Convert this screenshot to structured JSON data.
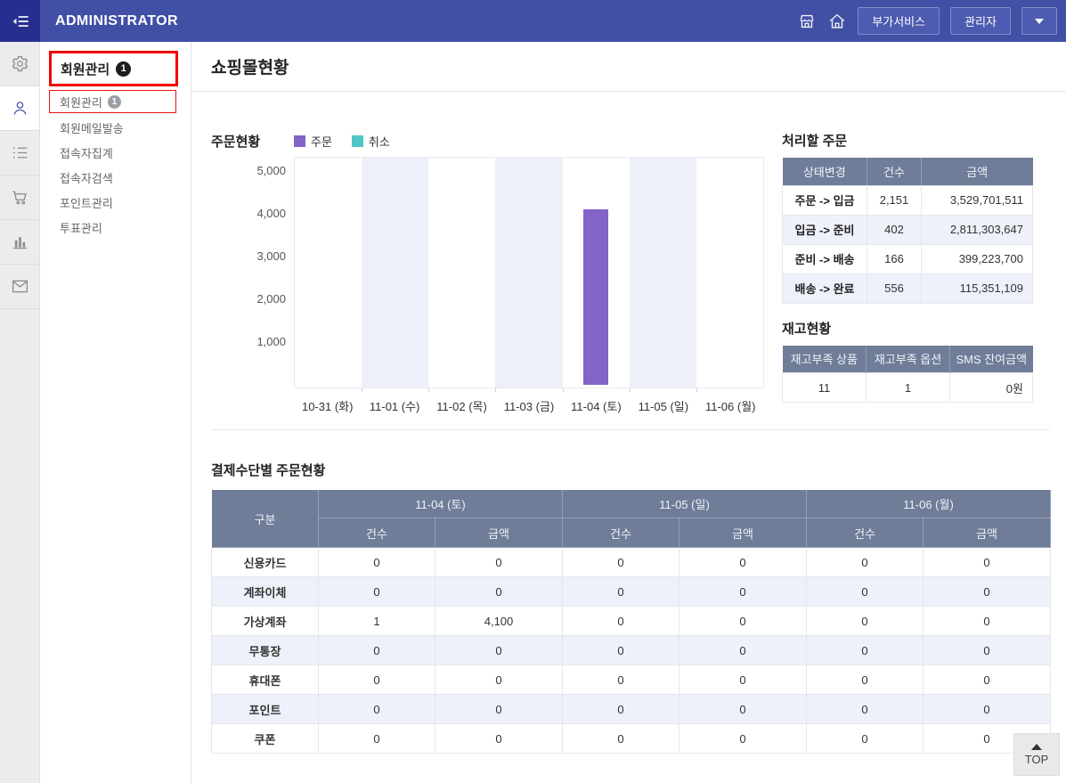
{
  "topbar": {
    "brand": "ADMINISTRATOR",
    "services_button": "부가서비스",
    "admin_button": "관리자"
  },
  "sidebar": {
    "rail_icons": [
      "settings-icon",
      "user-icon",
      "list-icon",
      "cart-icon",
      "bar-chart-icon",
      "mail-icon"
    ],
    "active_rail_icon": "user-icon",
    "menu": {
      "header": {
        "label": "회원관리",
        "badge": "1"
      },
      "items": [
        {
          "label": "회원관리",
          "badge": "1",
          "boxed_red": true
        },
        {
          "label": "회원메일발송"
        },
        {
          "label": "접속자집계"
        },
        {
          "label": "접속자검색"
        },
        {
          "label": "포인트관리"
        },
        {
          "label": "투표관리"
        }
      ]
    }
  },
  "page": {
    "title": "쇼핑몰현황"
  },
  "chart_data": {
    "type": "bar",
    "title": "주문현황",
    "categories": [
      "10-31 (화)",
      "11-01 (수)",
      "11-02 (목)",
      "11-03 (금)",
      "11-04 (토)",
      "11-05 (일)",
      "11-06 (월)"
    ],
    "series": [
      {
        "name": "주문",
        "color": "#8464c8",
        "values": [
          0,
          0,
          0,
          0,
          4100,
          0,
          0
        ]
      },
      {
        "name": "취소",
        "color": "#4fc5c8",
        "values": [
          0,
          0,
          0,
          0,
          0,
          0,
          0
        ]
      }
    ],
    "xlabel": "",
    "ylabel": "",
    "ylim": [
      0,
      5400
    ],
    "yticks": [
      1000,
      2000,
      3000,
      4000,
      5000
    ],
    "ytick_labels": [
      "1,000",
      "2,000",
      "3,000",
      "4,000",
      "5,000"
    ],
    "grid": false,
    "legend_position": "top",
    "band_color": "#edf0f9"
  },
  "pending_orders": {
    "title": "처리할 주문",
    "columns": [
      "상태변경",
      "건수",
      "금액"
    ],
    "rows": [
      {
        "status": "주문 -> 입금",
        "count": "2,151",
        "amount": "3,529,701,511"
      },
      {
        "status": "입금 -> 준비",
        "count": "402",
        "amount": "2,811,303,647"
      },
      {
        "status": "준비 -> 배송",
        "count": "166",
        "amount": "399,223,700"
      },
      {
        "status": "배송 -> 완료",
        "count": "556",
        "amount": "115,351,109"
      }
    ]
  },
  "inventory": {
    "title": "재고현황",
    "columns": [
      "재고부족 상품",
      "재고부족 옵션",
      "SMS 잔여금액"
    ],
    "values": [
      "11",
      "1",
      "0원"
    ]
  },
  "payment_table": {
    "title": "결제수단별 주문현황",
    "corner_label": "구분",
    "date_groups": [
      "11-04 (토)",
      "11-05 (일)",
      "11-06 (월)"
    ],
    "sub_columns": [
      "건수",
      "금액"
    ],
    "rows": [
      {
        "label": "신용카드",
        "values": [
          "0",
          "0",
          "0",
          "0",
          "0",
          "0"
        ]
      },
      {
        "label": "계좌이체",
        "values": [
          "0",
          "0",
          "0",
          "0",
          "0",
          "0"
        ]
      },
      {
        "label": "가상계좌",
        "values": [
          "1",
          "4,100",
          "0",
          "0",
          "0",
          "0"
        ]
      },
      {
        "label": "무통장",
        "values": [
          "0",
          "0",
          "0",
          "0",
          "0",
          "0"
        ]
      },
      {
        "label": "휴대폰",
        "values": [
          "0",
          "0",
          "0",
          "0",
          "0",
          "0"
        ]
      },
      {
        "label": "포인트",
        "values": [
          "0",
          "0",
          "0",
          "0",
          "0",
          "0"
        ]
      },
      {
        "label": "쿠폰",
        "values": [
          "0",
          "0",
          "0",
          "0",
          "0",
          "0"
        ]
      }
    ]
  },
  "top_button": {
    "label": "TOP"
  },
  "colors": {
    "topbar_blue": "#4150a5",
    "topbar_square": "#272f8e",
    "table_header_slate": "#6f7d99",
    "row_alt": "#eef1f9",
    "order_purple": "#8464c8",
    "cancel_teal": "#4fc5c8",
    "highlight_red": "#f00000"
  }
}
